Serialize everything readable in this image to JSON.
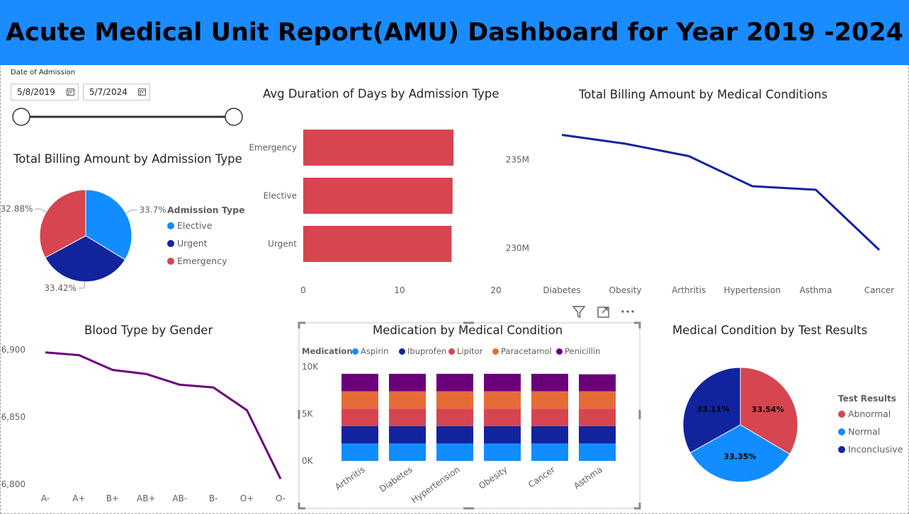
{
  "header": {
    "title": "Acute Medical Unit Report(AMU) Dashboard for Year 2019 -2024"
  },
  "slicer": {
    "label": "Date of Admission",
    "start": "5/8/2019",
    "end": "5/7/2024",
    "icon": "calendar-icon"
  },
  "visual_toolbar": {
    "icons": [
      "filter-icon",
      "focus-mode-icon",
      "more-options-icon"
    ]
  },
  "chart_data": [
    {
      "id": "billing_by_admission",
      "type": "pie",
      "title": "Total Billing Amount by Admission Type",
      "legend_title": "Admission Type",
      "legend_position": "right",
      "slices": [
        {
          "name": "Elective",
          "value": 33.7,
          "label": "33.7%",
          "color": "#118dff"
        },
        {
          "name": "Urgent",
          "value": 33.42,
          "label": "33.42%",
          "color": "#12239e"
        },
        {
          "name": "Emergency",
          "value": 32.88,
          "label": "32.88%",
          "color": "#d64550"
        }
      ]
    },
    {
      "id": "avg_duration",
      "type": "bar",
      "orientation": "horizontal",
      "title": "Avg Duration of Days by Admission Type",
      "categories": [
        "Emergency",
        "Elective",
        "Urgent"
      ],
      "values": [
        15.6,
        15.5,
        15.4
      ],
      "xlim": [
        0,
        20
      ],
      "xticks": [
        "0",
        "10",
        "20"
      ],
      "color": "#d64550"
    },
    {
      "id": "billing_by_condition",
      "type": "line",
      "title": "Total Billing Amount by Medical Conditions",
      "categories": [
        "Diabetes",
        "Obesity",
        "Arthritis",
        "Hypertension",
        "Asthma",
        "Cancer"
      ],
      "values": [
        236.4,
        235.9,
        235.2,
        233.5,
        233.3,
        229.9
      ],
      "ylim": [
        229.1,
        237.1
      ],
      "yticks": [
        {
          "value": 235,
          "label": "235M"
        },
        {
          "value": 230,
          "label": "230M"
        }
      ],
      "color": "#12239e"
    },
    {
      "id": "blood_by_gender",
      "type": "line",
      "title": "Blood Type by Gender",
      "categories": [
        "A-",
        "A+",
        "B+",
        "AB+",
        "AB-",
        "B-",
        "O+",
        "O-"
      ],
      "values": [
        6898,
        6896,
        6885,
        6882,
        6874,
        6872,
        6855,
        6804
      ],
      "ylim": [
        6800,
        6900
      ],
      "yticks": [
        {
          "value": 6900,
          "label": "6,900"
        },
        {
          "value": 6850,
          "label": "6,850"
        },
        {
          "value": 6800,
          "label": "6,800"
        }
      ],
      "color": "#6b007b"
    },
    {
      "id": "medication_by_condition",
      "type": "bar",
      "stacked": true,
      "title": "Medication by Medical Condition",
      "legend_title": "Medication",
      "legend_position": "top",
      "categories": [
        "Arthritis",
        "Diabetes",
        "Hypertension",
        "Obesity",
        "Cancer",
        "Asthma"
      ],
      "ylim": [
        0,
        10000
      ],
      "yticks": [
        {
          "value": 10000,
          "label": "10K"
        },
        {
          "value": 5000,
          "label": "5K"
        },
        {
          "value": 0,
          "label": "0K"
        }
      ],
      "series": [
        {
          "name": "Aspirin",
          "color": "#118dff",
          "values": [
            1850,
            1850,
            1850,
            1850,
            1850,
            1850
          ]
        },
        {
          "name": "Ibuprofen",
          "color": "#12239e",
          "values": [
            1850,
            1850,
            1850,
            1850,
            1850,
            1850
          ]
        },
        {
          "name": "Lipitor",
          "color": "#d64550",
          "values": [
            1850,
            1850,
            1850,
            1850,
            1850,
            1850
          ]
        },
        {
          "name": "Paracetamol",
          "color": "#e66c37",
          "values": [
            1850,
            1850,
            1850,
            1850,
            1850,
            1850
          ]
        },
        {
          "name": "Penicillin",
          "color": "#6b007b",
          "values": [
            1850,
            1850,
            1850,
            1850,
            1850,
            1800
          ]
        }
      ]
    },
    {
      "id": "condition_by_test",
      "type": "pie",
      "title": "Medical Condition by Test Results",
      "legend_title": "Test Results",
      "legend_position": "right",
      "slices": [
        {
          "name": "Abnormal",
          "value": 33.54,
          "label": "33.54%",
          "color": "#d64550"
        },
        {
          "name": "Normal",
          "value": 33.35,
          "label": "33.35%",
          "color": "#118dff"
        },
        {
          "name": "Inconclusive",
          "value": 33.11,
          "label": "33.11%",
          "color": "#12239e"
        }
      ]
    }
  ]
}
